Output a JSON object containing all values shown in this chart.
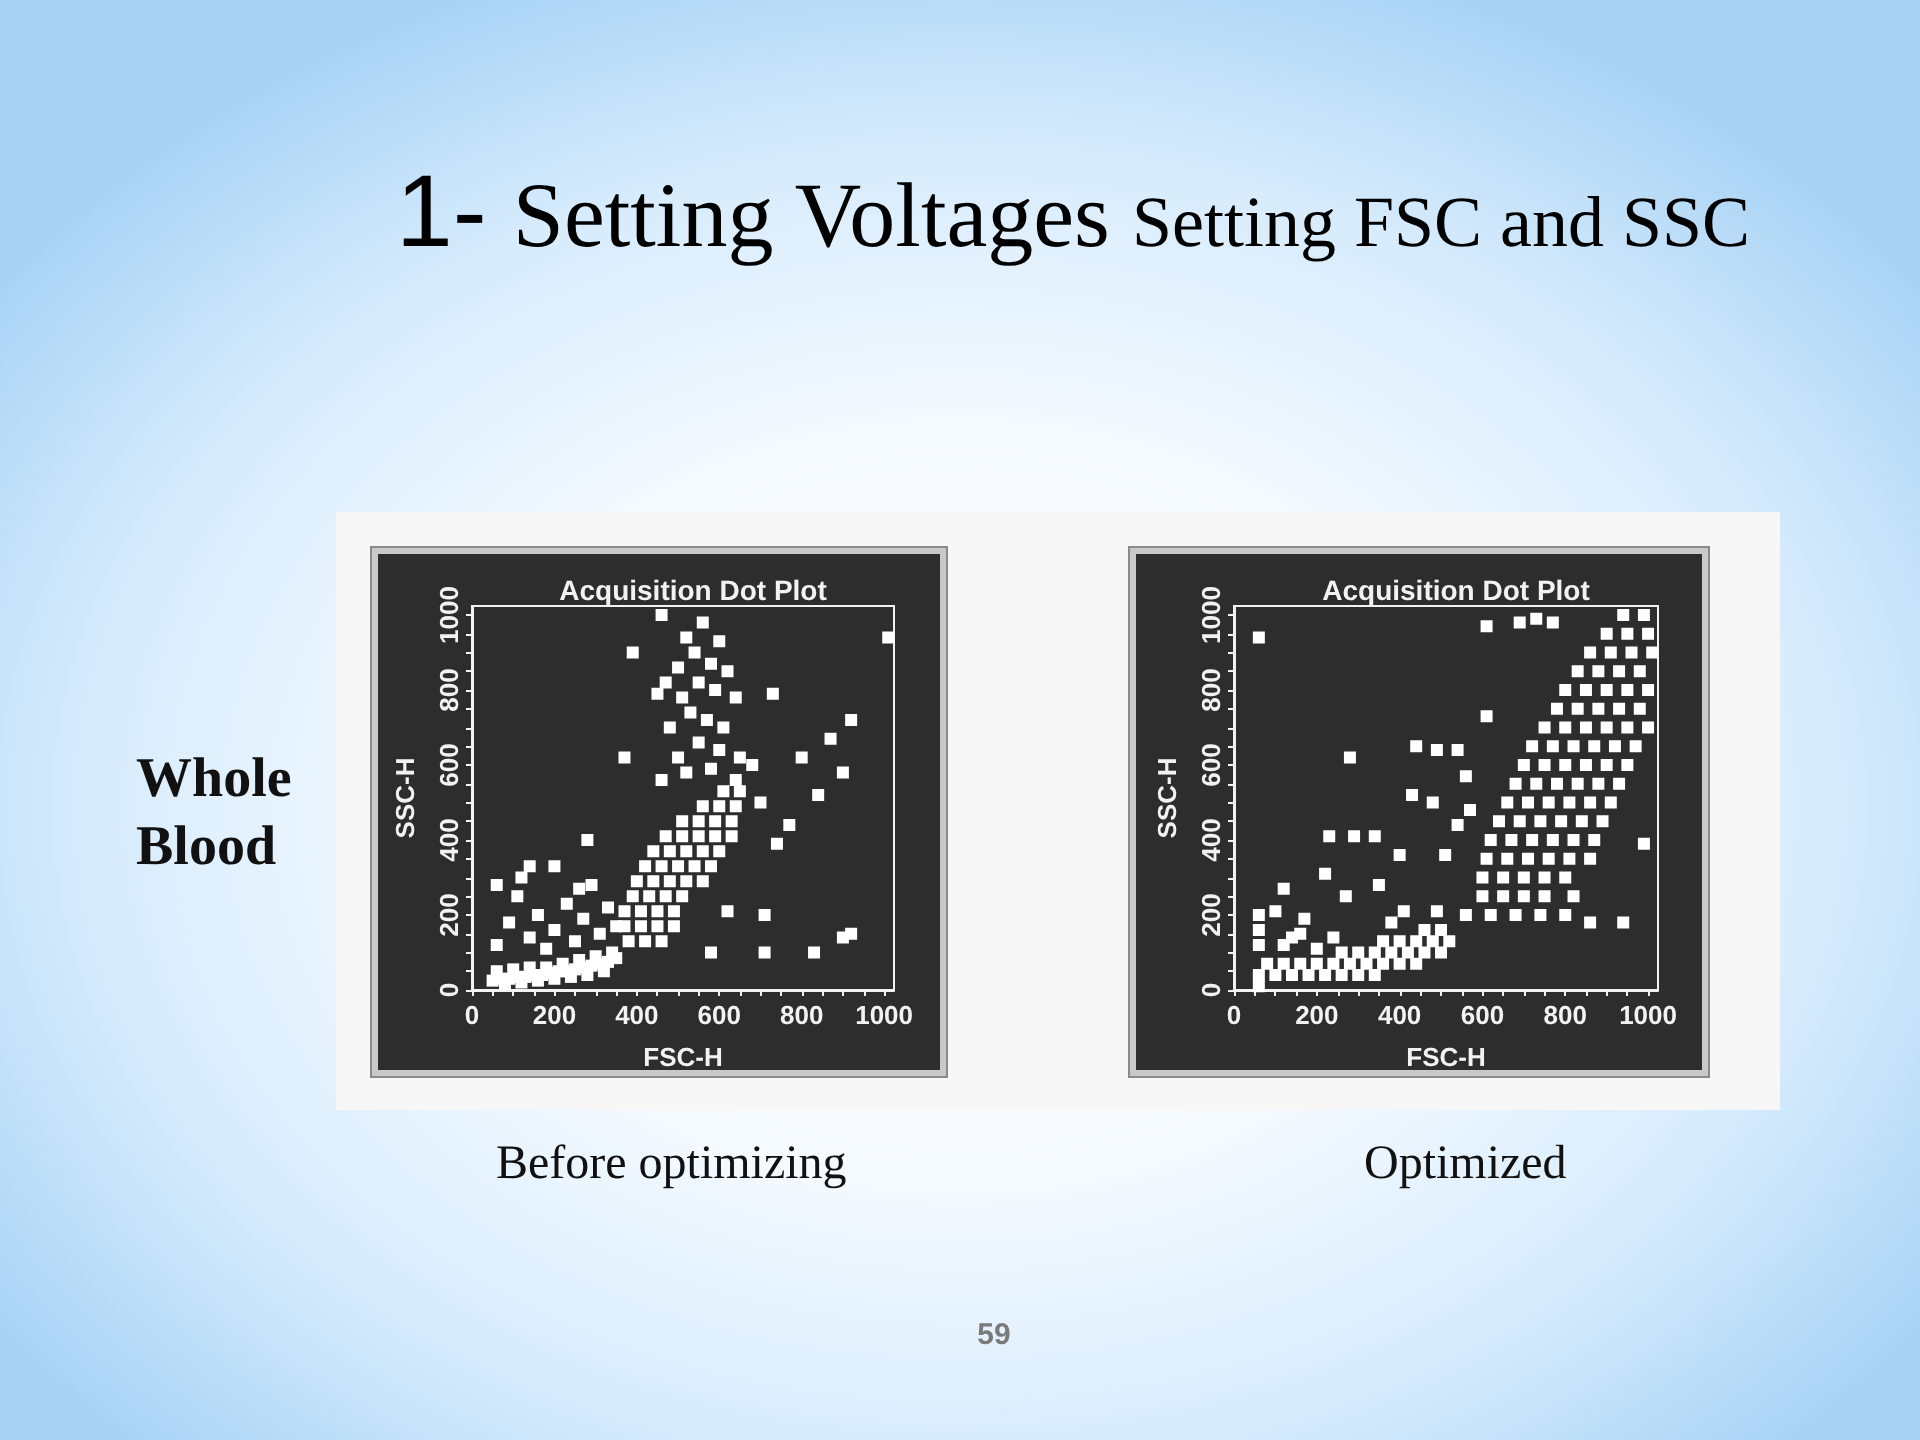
{
  "chart_data": [
    {
      "type": "other",
      "title": "1- Setting Voltages",
      "subtitle": "Setting FSC and SSC",
      "annotations": [
        "Whole Blood",
        "59"
      ]
    },
    {
      "type": "scatter",
      "title": "Acquisition Dot Plot",
      "xlabel": "FSC-H",
      "ylabel": "SSC-H",
      "xlim": [
        0,
        1024
      ],
      "ylim": [
        0,
        1024
      ],
      "xticks": [
        0,
        {
          "value": 50,
          "label": null
        },
        {
          "value": 100,
          "label": null
        },
        {
          "value": 150,
          "label": null
        },
        200,
        {
          "value": 250,
          "label": null
        },
        {
          "value": 300,
          "label": null
        },
        {
          "value": 350,
          "label": null
        },
        400,
        {
          "value": 450,
          "label": null
        },
        {
          "value": 500,
          "label": null
        },
        {
          "value": 550,
          "label": null
        },
        600,
        {
          "value": 650,
          "label": null
        },
        {
          "value": 700,
          "label": null
        },
        {
          "value": 750,
          "label": null
        },
        800,
        {
          "value": 850,
          "label": null
        },
        {
          "value": 900,
          "label": null
        },
        {
          "value": 950,
          "label": null
        },
        1000
      ],
      "yticks": [
        0,
        {
          "value": 50,
          "label": null
        },
        {
          "value": 100,
          "label": null
        },
        {
          "value": 150,
          "label": null
        },
        200,
        {
          "value": 250,
          "label": null
        },
        {
          "value": 300,
          "label": null
        },
        {
          "value": 350,
          "label": null
        },
        400,
        {
          "value": 450,
          "label": null
        },
        {
          "value": 500,
          "label": null
        },
        {
          "value": 550,
          "label": null
        },
        600,
        {
          "value": 650,
          "label": null
        },
        {
          "value": 700,
          "label": null
        },
        {
          "value": 750,
          "label": null
        },
        800,
        {
          "value": 850,
          "label": null
        },
        {
          "value": 900,
          "label": null
        },
        {
          "value": 950,
          "label": null
        },
        1000
      ],
      "marker": "square",
      "color": "#ffffff",
      "annotations": [
        "Before optimizing"
      ],
      "x": [
        50,
        70,
        90,
        110,
        130,
        150,
        170,
        190,
        210,
        230,
        250,
        270,
        290,
        310,
        330,
        350,
        60,
        100,
        140,
        180,
        220,
        260,
        300,
        340,
        80,
        120,
        160,
        200,
        240,
        280,
        320,
        380,
        420,
        460,
        370,
        410,
        450,
        490,
        370,
        410,
        450,
        490,
        390,
        430,
        470,
        510,
        400,
        440,
        480,
        520,
        560,
        420,
        460,
        500,
        540,
        580,
        440,
        480,
        520,
        560,
        600,
        470,
        510,
        550,
        590,
        630,
        510,
        550,
        590,
        630,
        560,
        600,
        640,
        610,
        650,
        60,
        90,
        110,
        140,
        160,
        180,
        200,
        230,
        250,
        270,
        290,
        310,
        330,
        350,
        120,
        60,
        200,
        260,
        140,
        280,
        460,
        560,
        520,
        600,
        540,
        580,
        500,
        620,
        470,
        550,
        590,
        510,
        640,
        530,
        570,
        610,
        480,
        550,
        600,
        650,
        500,
        520,
        580,
        640,
        460,
        680,
        700,
        390,
        450,
        730,
        920,
        870,
        900,
        800,
        840,
        370,
        620,
        710,
        710,
        830,
        920,
        900,
        580,
        1010,
        740,
        770
      ],
      "values": [
        25,
        30,
        30,
        35,
        35,
        40,
        40,
        45,
        50,
        50,
        55,
        60,
        65,
        70,
        75,
        85,
        50,
        55,
        60,
        60,
        70,
        80,
        90,
        100,
        15,
        20,
        25,
        30,
        35,
        40,
        50,
        130,
        130,
        130,
        170,
        170,
        170,
        170,
        210,
        210,
        210,
        210,
        250,
        250,
        250,
        250,
        290,
        290,
        290,
        290,
        290,
        330,
        330,
        330,
        330,
        330,
        370,
        370,
        370,
        370,
        370,
        410,
        410,
        410,
        410,
        410,
        450,
        450,
        450,
        450,
        490,
        490,
        490,
        530,
        530,
        120,
        180,
        250,
        140,
        200,
        110,
        160,
        230,
        130,
        190,
        280,
        150,
        220,
        170,
        300,
        280,
        330,
        270,
        330,
        400,
        1000,
        980,
        940,
        930,
        900,
        870,
        860,
        850,
        820,
        820,
        800,
        780,
        780,
        740,
        720,
        700,
        700,
        660,
        640,
        620,
        620,
        580,
        590,
        560,
        560,
        600,
        500,
        900,
        790,
        790,
        720,
        670,
        580,
        620,
        520,
        620,
        210,
        200,
        100,
        100,
        150,
        140,
        100,
        940,
        390,
        440
      ]
    },
    {
      "type": "scatter",
      "title": "Acquisition Dot Plot",
      "xlabel": "FSC-H",
      "ylabel": "SSC-H",
      "xlim": [
        0,
        1024
      ],
      "ylim": [
        0,
        1024
      ],
      "xticks": [
        0,
        {
          "value": 50,
          "label": null
        },
        {
          "value": 100,
          "label": null
        },
        {
          "value": 150,
          "label": null
        },
        200,
        {
          "value": 250,
          "label": null
        },
        {
          "value": 300,
          "label": null
        },
        {
          "value": 350,
          "label": null
        },
        400,
        {
          "value": 450,
          "label": null
        },
        {
          "value": 500,
          "label": null
        },
        {
          "value": 550,
          "label": null
        },
        600,
        {
          "value": 650,
          "label": null
        },
        {
          "value": 700,
          "label": null
        },
        {
          "value": 750,
          "label": null
        },
        800,
        {
          "value": 850,
          "label": null
        },
        {
          "value": 900,
          "label": null
        },
        {
          "value": 950,
          "label": null
        },
        1000
      ],
      "yticks": [
        0,
        {
          "value": 50,
          "label": null
        },
        {
          "value": 100,
          "label": null
        },
        {
          "value": 150,
          "label": null
        },
        200,
        {
          "value": 250,
          "label": null
        },
        {
          "value": 300,
          "label": null
        },
        {
          "value": 350,
          "label": null
        },
        400,
        {
          "value": 450,
          "label": null
        },
        {
          "value": 500,
          "label": null
        },
        {
          "value": 550,
          "label": null
        },
        600,
        {
          "value": 650,
          "label": null
        },
        {
          "value": 700,
          "label": null
        },
        {
          "value": 750,
          "label": null
        },
        800,
        {
          "value": 850,
          "label": null
        },
        {
          "value": 900,
          "label": null
        },
        {
          "value": 950,
          "label": null
        },
        1000
      ],
      "marker": "square",
      "color": "#ffffff",
      "annotations": [
        "Optimized"
      ],
      "x": [
        60,
        100,
        140,
        180,
        220,
        260,
        300,
        340,
        80,
        120,
        160,
        200,
        240,
        280,
        320,
        360,
        400,
        440,
        260,
        300,
        340,
        380,
        420,
        460,
        500,
        360,
        400,
        440,
        480,
        520,
        460,
        500,
        60,
        60,
        60,
        60,
        120,
        200,
        160,
        240,
        560,
        620,
        680,
        740,
        800,
        600,
        650,
        700,
        750,
        820,
        600,
        650,
        700,
        750,
        800,
        610,
        660,
        710,
        760,
        810,
        860,
        620,
        670,
        720,
        770,
        820,
        870,
        640,
        690,
        740,
        790,
        840,
        890,
        660,
        710,
        760,
        810,
        860,
        910,
        680,
        730,
        780,
        830,
        880,
        930,
        700,
        750,
        800,
        850,
        900,
        950,
        720,
        770,
        820,
        870,
        920,
        970,
        750,
        800,
        850,
        900,
        950,
        1000,
        780,
        830,
        880,
        930,
        980,
        800,
        850,
        900,
        950,
        1000,
        830,
        880,
        930,
        980,
        860,
        910,
        960,
        1010,
        900,
        950,
        1000,
        940,
        990,
        60,
        280,
        610,
        690,
        730,
        770,
        610,
        490,
        540,
        440,
        430,
        480,
        230,
        290,
        340,
        400,
        220,
        120,
        270,
        350,
        410,
        170,
        100,
        510,
        540,
        560,
        570,
        140,
        380,
        490,
        990,
        940,
        860
      ],
      "values": [
        40,
        40,
        40,
        40,
        40,
        40,
        40,
        40,
        70,
        70,
        70,
        70,
        70,
        70,
        70,
        70,
        70,
        70,
        100,
        100,
        100,
        100,
        100,
        100,
        100,
        130,
        130,
        130,
        130,
        130,
        160,
        160,
        120,
        160,
        200,
        10,
        120,
        110,
        150,
        140,
        200,
        200,
        200,
        200,
        200,
        250,
        250,
        250,
        250,
        250,
        300,
        300,
        300,
        300,
        300,
        350,
        350,
        350,
        350,
        350,
        350,
        400,
        400,
        400,
        400,
        400,
        400,
        450,
        450,
        450,
        450,
        450,
        450,
        500,
        500,
        500,
        500,
        500,
        500,
        550,
        550,
        550,
        550,
        550,
        550,
        600,
        600,
        600,
        600,
        600,
        600,
        650,
        650,
        650,
        650,
        650,
        650,
        700,
        700,
        700,
        700,
        700,
        700,
        750,
        750,
        750,
        750,
        750,
        800,
        800,
        800,
        800,
        800,
        850,
        850,
        850,
        850,
        900,
        900,
        900,
        900,
        950,
        950,
        950,
        1000,
        1000,
        940,
        620,
        970,
        980,
        990,
        980,
        730,
        640,
        640,
        650,
        520,
        500,
        410,
        410,
        410,
        360,
        310,
        270,
        250,
        280,
        210,
        190,
        210,
        360,
        440,
        570,
        480,
        140,
        180,
        210,
        390,
        180,
        180
      ]
    }
  ]
}
